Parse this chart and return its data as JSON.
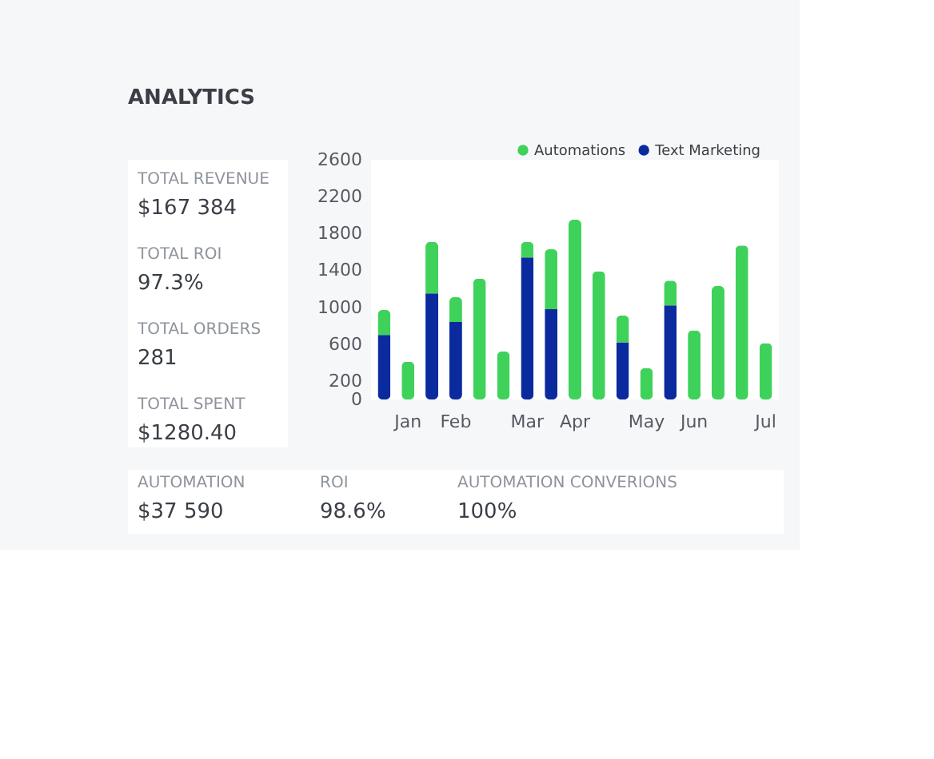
{
  "chart_data": [
    {
      "type": "other",
      "title": "ANALYTICS",
      "annotations": [
        "TOTAL REVENUE",
        "$167 384",
        "TOTAL ROI",
        "97.3%",
        "TOTAL ORDERS",
        "281",
        "TOTAL SPENT",
        "$1280.40"
      ]
    },
    {
      "type": "bar",
      "stacked": true,
      "categories": [
        null,
        "Jan",
        null,
        "Feb",
        null,
        null,
        "Mar",
        null,
        "Apr",
        null,
        null,
        "May",
        null,
        "Jun",
        null,
        null,
        "Jul"
      ],
      "series": [
        {
          "name": "Text Marketing",
          "color": "#0a2a9e",
          "values": [
            700,
            null,
            1150,
            840,
            null,
            null,
            1540,
            980,
            null,
            null,
            620,
            null,
            1020,
            null,
            null,
            null,
            null
          ]
        },
        {
          "name": "Automations",
          "color": "#3ed25a",
          "values": [
            270,
            410,
            560,
            270,
            1310,
            520,
            170,
            650,
            1950,
            1390,
            290,
            340,
            270,
            750,
            1230,
            1670,
            610
          ]
        }
      ],
      "ylim": [
        0,
        2600
      ],
      "yticks": [
        0,
        200,
        600,
        1000,
        1400,
        1800,
        2200,
        2600
      ],
      "grid": false,
      "legend": "top right"
    },
    {
      "type": "other",
      "annotations": [
        "AUTOMATION",
        "$37 590",
        "ROI",
        "98.6%",
        "AUTOMATION CONVERIONS",
        "100%"
      ]
    }
  ]
}
